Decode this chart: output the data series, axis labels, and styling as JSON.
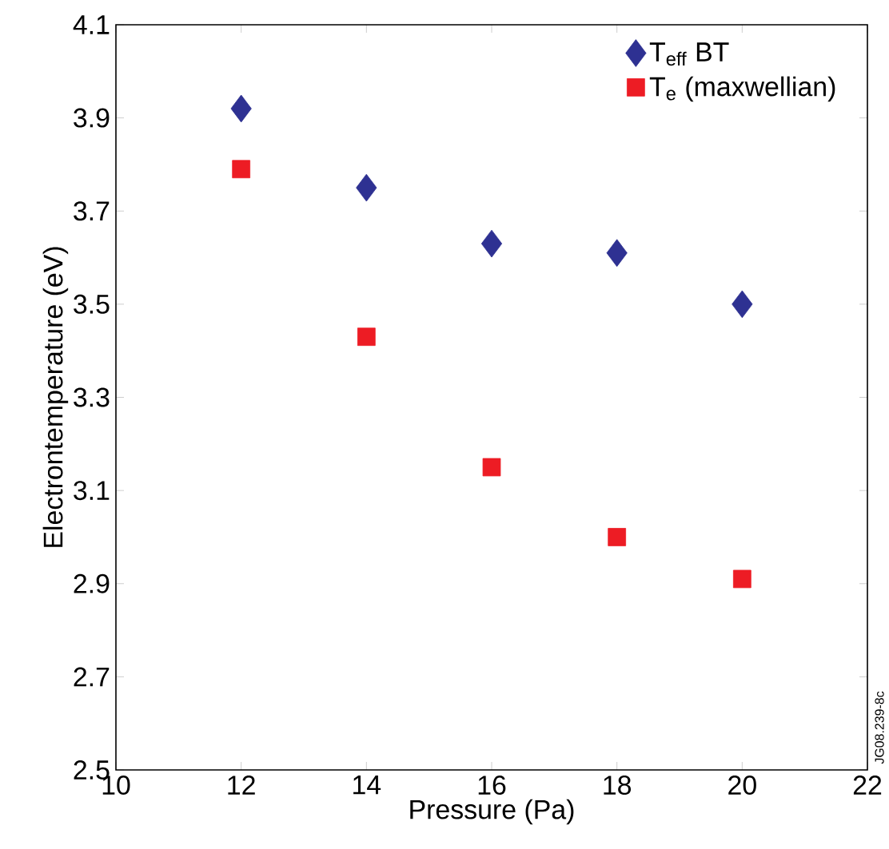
{
  "chart_data": {
    "type": "scatter",
    "xlabel": "Pressure (Pa)",
    "ylabel": "Electrontemperature (eV)",
    "x": [
      12,
      14,
      16,
      18,
      20
    ],
    "series": [
      {
        "name": "T$_{eff}$ BT",
        "color": "#2e3192",
        "marker": "diamond",
        "values": [
          3.92,
          3.75,
          3.63,
          3.61,
          3.5
        ]
      },
      {
        "name": "T$_{e}$ (maxwellian)",
        "color": "#ed1c24",
        "marker": "square",
        "values": [
          3.79,
          3.43,
          3.15,
          3.0,
          2.91
        ]
      }
    ],
    "xlim": [
      10,
      22
    ],
    "ylim": [
      2.5,
      4.1
    ],
    "xticks": [
      10,
      12,
      14,
      16,
      18,
      20,
      22
    ],
    "yticks": [
      2.5,
      2.7,
      2.9,
      3.1,
      3.3,
      3.5,
      3.7,
      3.9,
      4.1
    ],
    "grid": false,
    "legend": "top right",
    "annotations": [
      "JG08.239-8c"
    ]
  }
}
